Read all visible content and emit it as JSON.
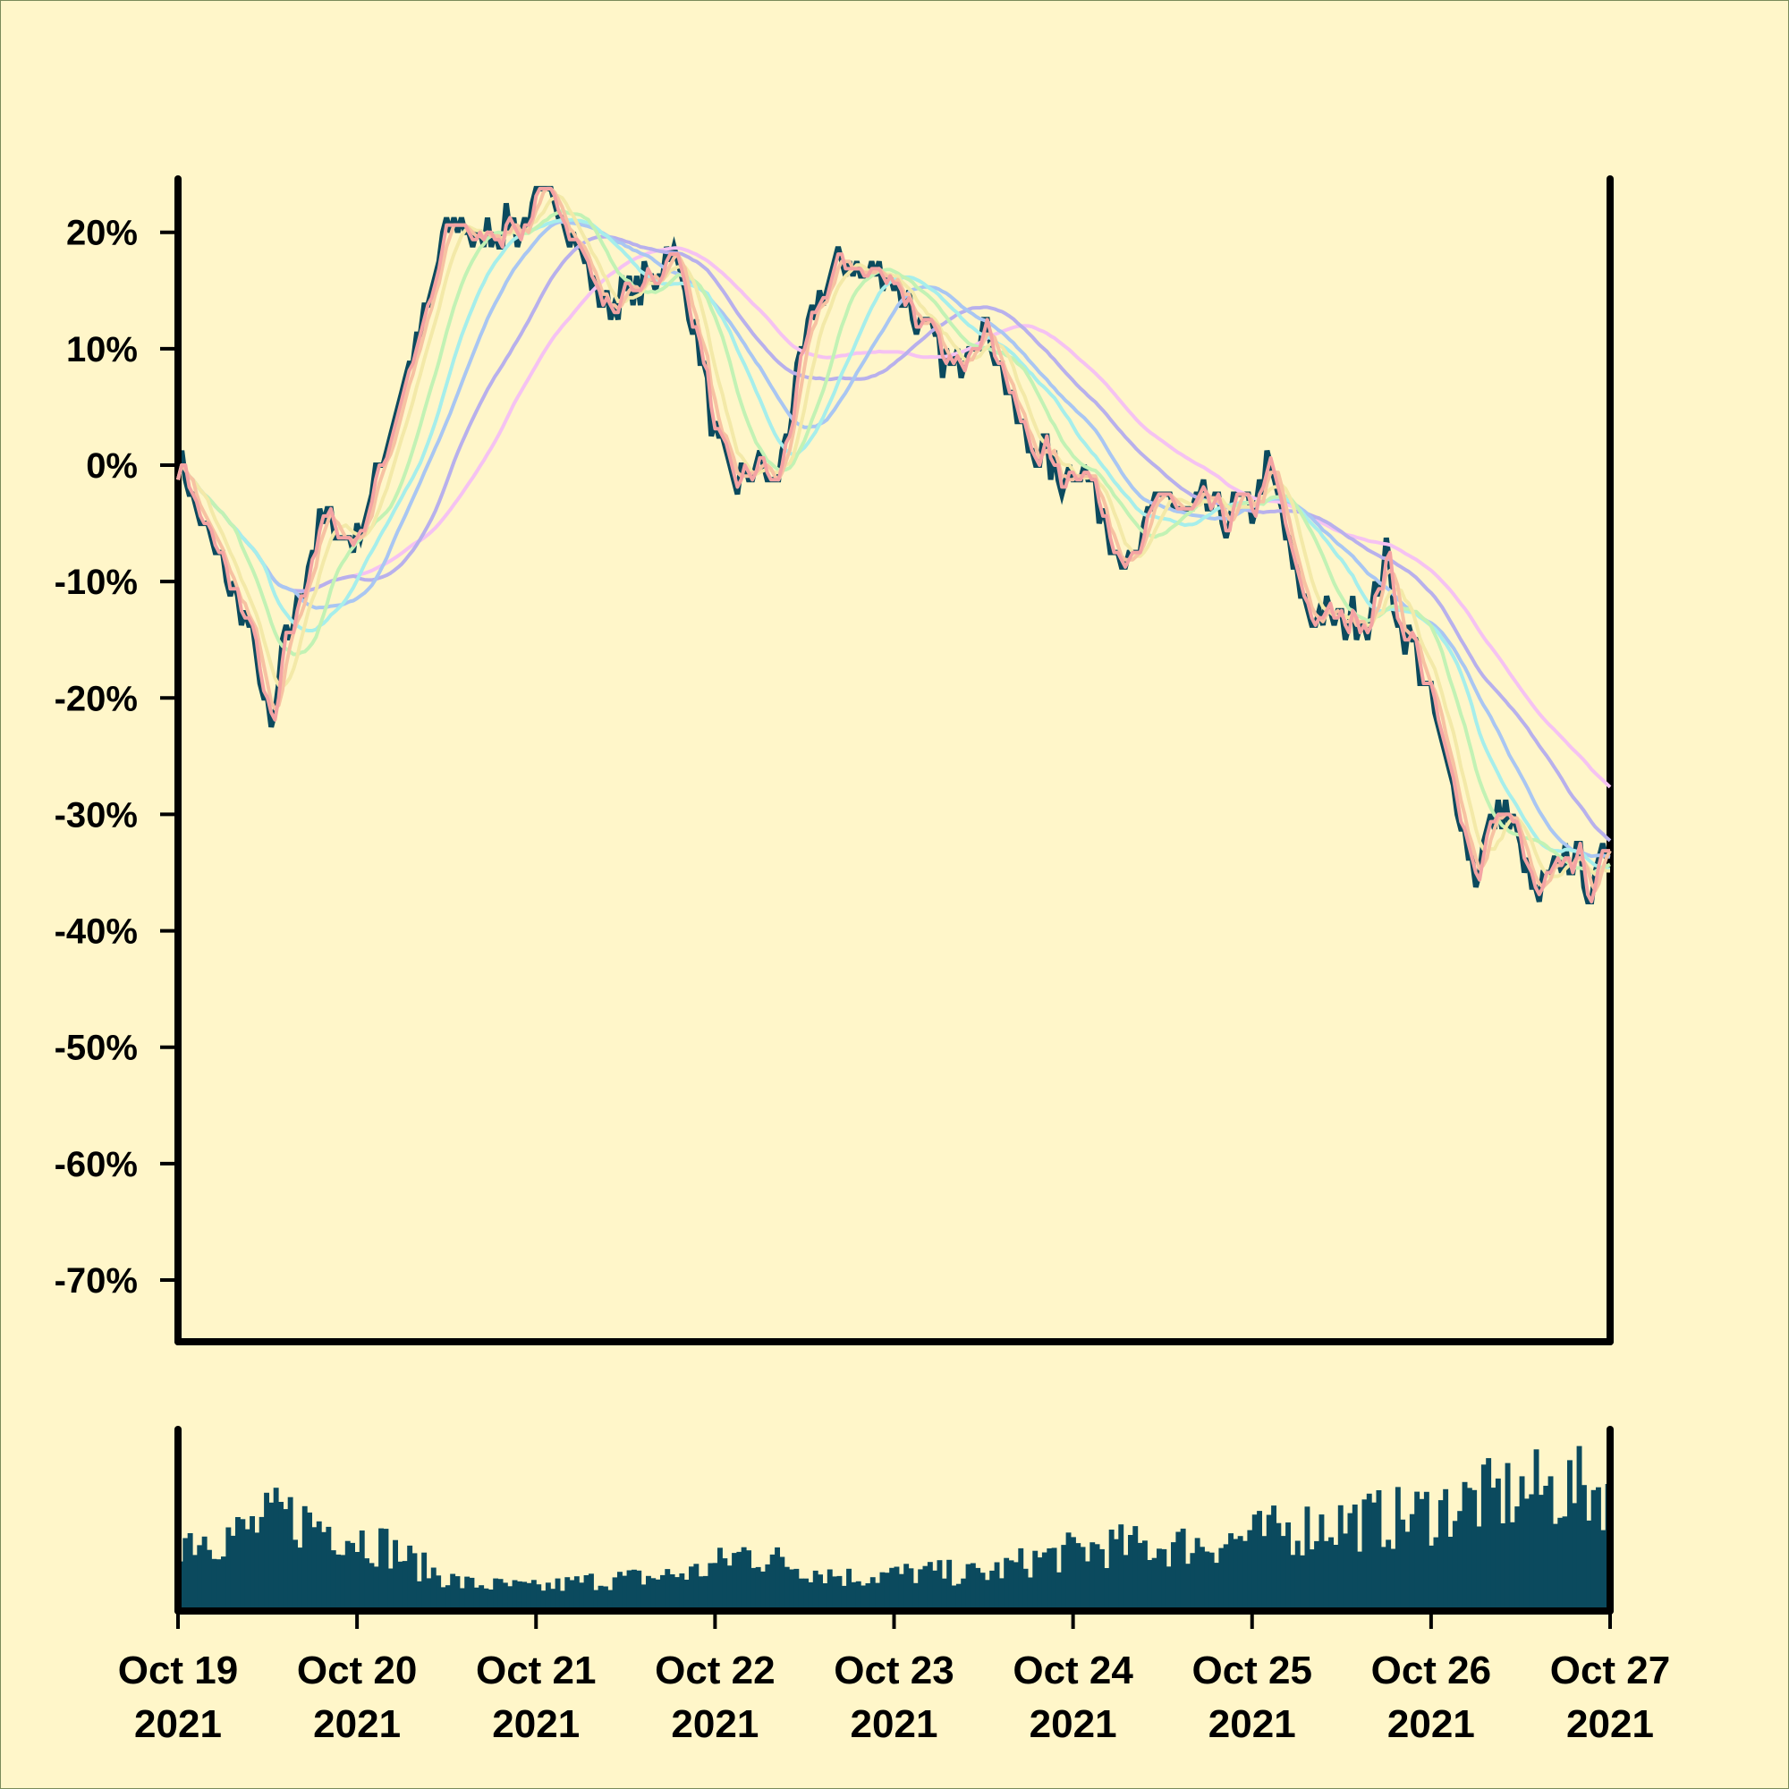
{
  "colors": {
    "background": "#fff6c9",
    "border": "#7a8a5a",
    "axis": "#000000",
    "price": "#0b4a5e",
    "volume": "#0b4a5e",
    "ma": [
      "#f4a3a3",
      "#f7c2a2",
      "#f3e9a8",
      "#c2f2b4",
      "#a6eeeb",
      "#a9c6f2",
      "#b8b0ec",
      "#f5c2f2"
    ]
  },
  "chart_data": {
    "type": "line",
    "title": "",
    "xlabel": "",
    "ylabel": "",
    "grid": false,
    "legend": "none",
    "ylim": [
      -0.75,
      0.25
    ],
    "y_ticks": [
      {
        "value": 0.2,
        "label": "20%"
      },
      {
        "value": 0.1,
        "label": "10%"
      },
      {
        "value": 0.0,
        "label": "0%"
      },
      {
        "value": -0.1,
        "label": "-10%"
      },
      {
        "value": -0.2,
        "label": "-20%"
      },
      {
        "value": -0.3,
        "label": "-30%"
      },
      {
        "value": -0.4,
        "label": "-40%"
      },
      {
        "value": -0.5,
        "label": "-50%"
      },
      {
        "value": -0.6,
        "label": "-60%"
      },
      {
        "value": -0.7,
        "label": "-70%"
      }
    ],
    "x_range": [
      "2021-10-19T00:00",
      "2021-10-27T00:00"
    ],
    "x_ticks": [
      {
        "date": "2021-10-19",
        "line1": "Oct 19",
        "line2": "2021"
      },
      {
        "date": "2021-10-20",
        "line1": "Oct 20",
        "line2": "2021"
      },
      {
        "date": "2021-10-21",
        "line1": "Oct 21",
        "line2": "2021"
      },
      {
        "date": "2021-10-22",
        "line1": "Oct 22",
        "line2": "2021"
      },
      {
        "date": "2021-10-23",
        "line1": "Oct 23",
        "line2": "2021"
      },
      {
        "date": "2021-10-24",
        "line1": "Oct 24",
        "line2": "2021"
      },
      {
        "date": "2021-10-25",
        "line1": "Oct 25",
        "line2": "2021"
      },
      {
        "date": "2021-10-26",
        "line1": "Oct 26",
        "line2": "2021"
      },
      {
        "date": "2021-10-27",
        "line1": "Oct 27",
        "line2": "2021"
      }
    ],
    "price_key_points": [
      [
        "2021-10-19T00:00",
        0.01
      ],
      [
        "2021-10-19T03:00",
        -0.05
      ],
      [
        "2021-10-19T06:00",
        -0.09
      ],
      [
        "2021-10-19T09:00",
        -0.13
      ],
      [
        "2021-10-19T11:00",
        -0.18
      ],
      [
        "2021-10-19T12:30",
        -0.235
      ],
      [
        "2021-10-19T14:00",
        -0.17
      ],
      [
        "2021-10-19T16:00",
        -0.12
      ],
      [
        "2021-10-19T18:00",
        -0.07
      ],
      [
        "2021-10-19T20:00",
        -0.04
      ],
      [
        "2021-10-19T22:00",
        -0.06
      ],
      [
        "2021-10-20T00:00",
        -0.06
      ],
      [
        "2021-10-20T02:00",
        -0.03
      ],
      [
        "2021-10-20T04:00",
        0.02
      ],
      [
        "2021-10-20T06:00",
        0.07
      ],
      [
        "2021-10-20T08:00",
        0.1
      ],
      [
        "2021-10-20T10:00",
        0.15
      ],
      [
        "2021-10-20T12:00",
        0.2
      ],
      [
        "2021-10-20T14:00",
        0.21
      ],
      [
        "2021-10-20T16:00",
        0.19
      ],
      [
        "2021-10-20T18:00",
        0.2
      ],
      [
        "2021-10-20T20:00",
        0.21
      ],
      [
        "2021-10-20T22:00",
        0.2
      ],
      [
        "2021-10-21T00:00",
        0.22
      ],
      [
        "2021-10-21T03:00",
        0.235
      ],
      [
        "2021-10-21T05:00",
        0.2
      ],
      [
        "2021-10-21T07:00",
        0.17
      ],
      [
        "2021-10-21T09:00",
        0.14
      ],
      [
        "2021-10-21T11:00",
        0.14
      ],
      [
        "2021-10-21T13:00",
        0.15
      ],
      [
        "2021-10-21T16:00",
        0.16
      ],
      [
        "2021-10-21T18:00",
        0.19
      ],
      [
        "2021-10-21T20:00",
        0.15
      ],
      [
        "2021-10-21T22:00",
        0.1
      ],
      [
        "2021-10-22T00:00",
        0.02
      ],
      [
        "2021-10-22T02:00",
        -0.01
      ],
      [
        "2021-10-22T04:00",
        -0.01
      ],
      [
        "2021-10-22T06:00",
        0.0
      ],
      [
        "2021-10-22T08:00",
        -0.02
      ],
      [
        "2021-10-22T10:00",
        0.04
      ],
      [
        "2021-10-22T12:00",
        0.1
      ],
      [
        "2021-10-22T14:00",
        0.14
      ],
      [
        "2021-10-22T16:00",
        0.17
      ],
      [
        "2021-10-22T18:00",
        0.18
      ],
      [
        "2021-10-22T20:00",
        0.16
      ],
      [
        "2021-10-22T22:00",
        0.17
      ],
      [
        "2021-10-23T00:00",
        0.16
      ],
      [
        "2021-10-23T02:00",
        0.14
      ],
      [
        "2021-10-23T04:00",
        0.11
      ],
      [
        "2021-10-23T06:00",
        0.1
      ],
      [
        "2021-10-23T08:00",
        0.08
      ],
      [
        "2021-10-23T10:00",
        0.11
      ],
      [
        "2021-10-23T12:00",
        0.12
      ],
      [
        "2021-10-23T14:00",
        0.1
      ],
      [
        "2021-10-23T16:00",
        0.05
      ],
      [
        "2021-10-23T18:00",
        0.02
      ],
      [
        "2021-10-23T20:00",
        0.01
      ],
      [
        "2021-10-23T22:00",
        -0.01
      ],
      [
        "2021-10-24T00:00",
        0.0
      ],
      [
        "2021-10-24T02:00",
        -0.01
      ],
      [
        "2021-10-24T04:00",
        -0.04
      ],
      [
        "2021-10-24T06:00",
        -0.07
      ],
      [
        "2021-10-24T08:00",
        -0.09
      ],
      [
        "2021-10-24T10:00",
        -0.05
      ],
      [
        "2021-10-24T12:00",
        -0.02
      ],
      [
        "2021-10-24T14:00",
        -0.04
      ],
      [
        "2021-10-24T16:00",
        -0.04
      ],
      [
        "2021-10-24T18:00",
        -0.03
      ],
      [
        "2021-10-24T20:00",
        -0.05
      ],
      [
        "2021-10-24T22:00",
        -0.03
      ],
      [
        "2021-10-25T00:00",
        -0.04
      ],
      [
        "2021-10-25T02:00",
        0.0
      ],
      [
        "2021-10-25T04:00",
        -0.04
      ],
      [
        "2021-10-25T06:00",
        -0.1
      ],
      [
        "2021-10-25T08:00",
        -0.13
      ],
      [
        "2021-10-25T10:00",
        -0.13
      ],
      [
        "2021-10-25T12:00",
        -0.14
      ],
      [
        "2021-10-25T14:00",
        -0.13
      ],
      [
        "2021-10-25T16:00",
        -0.13
      ],
      [
        "2021-10-25T18:00",
        -0.08
      ],
      [
        "2021-10-25T20:00",
        -0.14
      ],
      [
        "2021-10-25T22:00",
        -0.16
      ],
      [
        "2021-10-26T00:00",
        -0.2
      ],
      [
        "2021-10-26T02:00",
        -0.26
      ],
      [
        "2021-10-26T04:00",
        -0.3
      ],
      [
        "2021-10-26T06:00",
        -0.35
      ],
      [
        "2021-10-26T08:00",
        -0.31
      ],
      [
        "2021-10-26T10:00",
        -0.3
      ],
      [
        "2021-10-26T12:00",
        -0.33
      ],
      [
        "2021-10-26T14:00",
        -0.37
      ],
      [
        "2021-10-26T16:00",
        -0.36
      ],
      [
        "2021-10-26T18:00",
        -0.33
      ],
      [
        "2021-10-26T20:00",
        -0.34
      ],
      [
        "2021-10-26T22:00",
        -0.37
      ],
      [
        "2021-10-27T00:00",
        -0.31
      ]
    ],
    "moving_average_windows": [
      2,
      4,
      8,
      16,
      24,
      32,
      48,
      64
    ],
    "volume_levels": [
      [
        "2021-10-19T00:00",
        0.48
      ],
      [
        "2021-10-19T08:00",
        0.5
      ],
      [
        "2021-10-19T14:00",
        0.62
      ],
      [
        "2021-10-19T20:00",
        0.55
      ],
      [
        "2021-10-20T04:00",
        0.42
      ],
      [
        "2021-10-20T08:00",
        0.3
      ],
      [
        "2021-10-20T14:00",
        0.18
      ],
      [
        "2021-10-21T00:00",
        0.15
      ],
      [
        "2021-10-21T08:00",
        0.2
      ],
      [
        "2021-10-21T16:00",
        0.22
      ],
      [
        "2021-10-21T22:00",
        0.26
      ],
      [
        "2021-10-22T04:00",
        0.38
      ],
      [
        "2021-10-22T12:00",
        0.28
      ],
      [
        "2021-10-22T18:00",
        0.22
      ],
      [
        "2021-10-23T04:00",
        0.25
      ],
      [
        "2021-10-23T12:00",
        0.24
      ],
      [
        "2021-10-23T20:00",
        0.35
      ],
      [
        "2021-10-24T04:00",
        0.42
      ],
      [
        "2021-10-24T12:00",
        0.42
      ],
      [
        "2021-10-24T20:00",
        0.45
      ],
      [
        "2021-10-25T04:00",
        0.52
      ],
      [
        "2021-10-25T12:00",
        0.58
      ],
      [
        "2021-10-25T20:00",
        0.6
      ],
      [
        "2021-10-26T06:00",
        0.72
      ],
      [
        "2021-10-26T14:00",
        0.78
      ],
      [
        "2021-10-27T00:00",
        0.8
      ]
    ]
  }
}
